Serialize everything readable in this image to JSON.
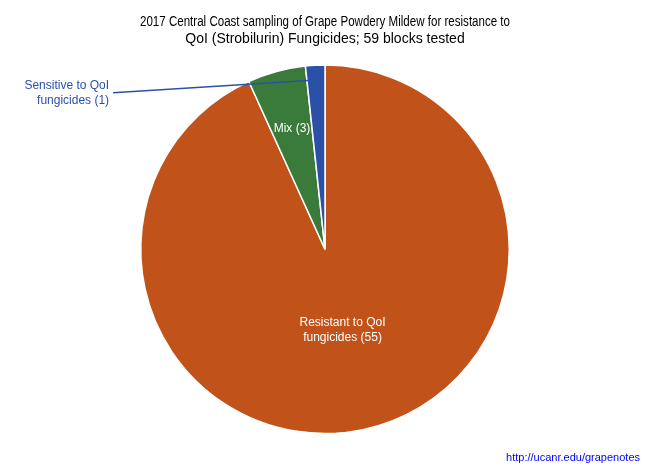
{
  "chart_data": {
    "type": "pie",
    "title": "2017 Central Coast sampling of Grape Powdery Mildew for resistance to\nQoI (Strobilurin) Fungicides; 59 blocks tested",
    "categories": [
      "Resistant to QoI\nfungicides (55)",
      "Mix (3)",
      "Sensitive to QoI\nfungicides (1)"
    ],
    "values": [
      55,
      3,
      1
    ],
    "colors": [
      "#C0521A",
      "#3A7A3A",
      "#2B50A8"
    ],
    "legend": false,
    "annotations": [
      {
        "text": "http://ucanr.edu/grapenotes",
        "color": "#0000FF"
      }
    ]
  }
}
